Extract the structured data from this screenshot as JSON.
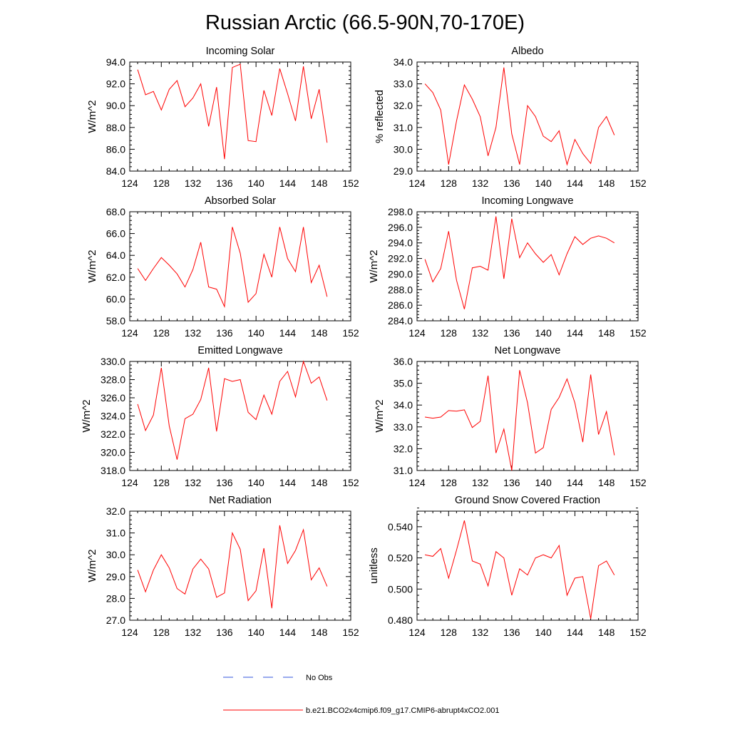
{
  "title": "Russian Arctic (66.5-90N,70-170E)",
  "legend": {
    "entries": [
      {
        "label": "No Obs",
        "color": "#3355dd",
        "style": "dashed"
      },
      {
        "label": "b.e21.BCO2x4cmip6.f09_g17.CMIP6-abrupt4xCO2.001",
        "color": "#ff0000",
        "style": "solid"
      }
    ]
  },
  "chart_data": [
    {
      "type": "line",
      "title": "Incoming Solar",
      "ylabel": "W/m^2",
      "xlim": [
        124,
        152
      ],
      "ylim": [
        84,
        94
      ],
      "xticks": [
        124,
        128,
        132,
        136,
        140,
        144,
        148,
        152
      ],
      "yticks": [
        "84.0",
        "86.0",
        "88.0",
        "90.0",
        "92.0",
        "94.0"
      ],
      "x": [
        125,
        126,
        127,
        128,
        129,
        130,
        131,
        132,
        133,
        134,
        135,
        136,
        137,
        138,
        139,
        140,
        141,
        142,
        143,
        144,
        145,
        146,
        147,
        148,
        149
      ],
      "series": [
        {
          "name": "b.e21.BCO2x4cmip6.f09_g17.CMIP6-abrupt4xCO2.001",
          "color": "#ff0000",
          "values": [
            93.3,
            91.0,
            91.3,
            89.6,
            91.5,
            92.3,
            89.9,
            90.7,
            92.0,
            88.1,
            91.7,
            85.1,
            93.5,
            93.8,
            86.8,
            86.7,
            91.4,
            89.1,
            93.4,
            91.1,
            88.6,
            93.6,
            88.8,
            91.5,
            86.6
          ]
        }
      ]
    },
    {
      "type": "line",
      "title": "Albedo",
      "ylabel": "% reflected",
      "xlim": [
        124,
        152
      ],
      "ylim": [
        29,
        34
      ],
      "xticks": [
        124,
        128,
        132,
        136,
        140,
        144,
        148,
        152
      ],
      "yticks": [
        "29.0",
        "30.0",
        "31.0",
        "32.0",
        "33.0",
        "34.0"
      ],
      "x": [
        125,
        126,
        127,
        128,
        129,
        130,
        131,
        132,
        133,
        134,
        135,
        136,
        137,
        138,
        139,
        140,
        141,
        142,
        143,
        144,
        145,
        146,
        147,
        148,
        149
      ],
      "series": [
        {
          "name": "b.e21.BCO2x4cmip6.f09_g17.CMIP6-abrupt4xCO2.001",
          "color": "#ff0000",
          "values": [
            33.0,
            32.6,
            31.8,
            29.3,
            31.3,
            32.95,
            32.3,
            31.5,
            29.7,
            31.0,
            33.75,
            30.7,
            29.3,
            32.0,
            31.5,
            30.6,
            30.35,
            30.85,
            29.3,
            30.45,
            29.8,
            29.35,
            31.0,
            31.5,
            30.65
          ]
        }
      ]
    },
    {
      "type": "line",
      "title": "Absorbed Solar",
      "ylabel": "W/m^2",
      "xlim": [
        124,
        152
      ],
      "ylim": [
        58,
        68
      ],
      "xticks": [
        124,
        128,
        132,
        136,
        140,
        144,
        148,
        152
      ],
      "yticks": [
        "58.0",
        "60.0",
        "62.0",
        "64.0",
        "66.0",
        "68.0"
      ],
      "x": [
        125,
        126,
        127,
        128,
        129,
        130,
        131,
        132,
        133,
        134,
        135,
        136,
        137,
        138,
        139,
        140,
        141,
        142,
        143,
        144,
        145,
        146,
        147,
        148,
        149
      ],
      "series": [
        {
          "name": "b.e21.BCO2x4cmip6.f09_g17.CMIP6-abrupt4xCO2.001",
          "color": "#ff0000",
          "values": [
            62.8,
            61.7,
            62.8,
            63.8,
            63.1,
            62.3,
            61.1,
            62.7,
            65.2,
            61.1,
            60.9,
            59.3,
            66.6,
            64.2,
            59.7,
            60.5,
            64.1,
            62.0,
            66.6,
            63.7,
            62.5,
            66.6,
            61.5,
            63.1,
            60.2
          ]
        }
      ]
    },
    {
      "type": "line",
      "title": "Incoming Longwave",
      "ylabel": "W/m^2",
      "xlim": [
        124,
        152
      ],
      "ylim": [
        284,
        298
      ],
      "xticks": [
        124,
        128,
        132,
        136,
        140,
        144,
        148,
        152
      ],
      "yticks": [
        "284.0",
        "286.0",
        "288.0",
        "290.0",
        "292.0",
        "294.0",
        "296.0",
        "298.0"
      ],
      "x": [
        125,
        126,
        127,
        128,
        129,
        130,
        131,
        132,
        133,
        134,
        135,
        136,
        137,
        138,
        139,
        140,
        141,
        142,
        143,
        144,
        145,
        146,
        147,
        148,
        149
      ],
      "series": [
        {
          "name": "b.e21.BCO2x4cmip6.f09_g17.CMIP6-abrupt4xCO2.001",
          "color": "#ff0000",
          "values": [
            291.9,
            289.0,
            290.7,
            295.5,
            289.2,
            285.5,
            290.8,
            291.0,
            290.5,
            297.4,
            289.4,
            297.1,
            292.1,
            294.0,
            292.6,
            291.5,
            292.5,
            289.9,
            292.6,
            294.8,
            293.8,
            294.6,
            294.9,
            294.6,
            294.0
          ]
        }
      ]
    },
    {
      "type": "line",
      "title": "Emitted Longwave",
      "ylabel": "W/m^2",
      "xlim": [
        124,
        152
      ],
      "ylim": [
        318,
        330
      ],
      "xticks": [
        124,
        128,
        132,
        136,
        140,
        144,
        148,
        152
      ],
      "yticks": [
        "318.0",
        "320.0",
        "322.0",
        "324.0",
        "326.0",
        "328.0",
        "330.0"
      ],
      "x": [
        125,
        126,
        127,
        128,
        129,
        130,
        131,
        132,
        133,
        134,
        135,
        136,
        137,
        138,
        139,
        140,
        141,
        142,
        143,
        144,
        145,
        146,
        147,
        148,
        149
      ],
      "series": [
        {
          "name": "b.e21.BCO2x4cmip6.f09_g17.CMIP6-abrupt4xCO2.001",
          "color": "#ff0000",
          "values": [
            325.3,
            322.4,
            324.1,
            329.3,
            322.9,
            319.2,
            323.7,
            324.2,
            325.8,
            329.3,
            322.3,
            328.1,
            327.8,
            328.0,
            324.4,
            323.6,
            326.3,
            324.2,
            327.8,
            328.9,
            326.1,
            330.0,
            327.6,
            328.3,
            325.7
          ]
        }
      ]
    },
    {
      "type": "line",
      "title": "Net Longwave",
      "ylabel": "W/m^2",
      "xlim": [
        124,
        152
      ],
      "ylim": [
        31,
        36
      ],
      "xticks": [
        124,
        128,
        132,
        136,
        140,
        144,
        148,
        152
      ],
      "yticks": [
        "31.0",
        "32.0",
        "33.0",
        "34.0",
        "35.0",
        "36.0"
      ],
      "x": [
        125,
        126,
        127,
        128,
        129,
        130,
        131,
        132,
        133,
        134,
        135,
        136,
        137,
        138,
        139,
        140,
        141,
        142,
        143,
        144,
        145,
        146,
        147,
        148,
        149
      ],
      "series": [
        {
          "name": "b.e21.BCO2x4cmip6.f09_g17.CMIP6-abrupt4xCO2.001",
          "color": "#ff0000",
          "values": [
            33.45,
            33.4,
            33.45,
            33.75,
            33.72,
            33.78,
            32.97,
            33.25,
            35.35,
            31.8,
            32.9,
            31.0,
            35.6,
            34.1,
            31.8,
            32.05,
            33.8,
            34.35,
            35.2,
            34.1,
            32.3,
            35.4,
            32.65,
            33.7,
            31.7
          ]
        }
      ]
    },
    {
      "type": "line",
      "title": "Net Radiation",
      "ylabel": "W/m^2",
      "xlim": [
        124,
        152
      ],
      "ylim": [
        27,
        32
      ],
      "xticks": [
        124,
        128,
        132,
        136,
        140,
        144,
        148,
        152
      ],
      "yticks": [
        "27.0",
        "28.0",
        "29.0",
        "30.0",
        "31.0",
        "32.0"
      ],
      "x": [
        125,
        126,
        127,
        128,
        129,
        130,
        131,
        132,
        133,
        134,
        135,
        136,
        137,
        138,
        139,
        140,
        141,
        142,
        143,
        144,
        145,
        146,
        147,
        148,
        149
      ],
      "series": [
        {
          "name": "b.e21.BCO2x4cmip6.f09_g17.CMIP6-abrupt4xCO2.001",
          "color": "#ff0000",
          "values": [
            29.3,
            28.3,
            29.3,
            30.0,
            29.4,
            28.45,
            28.2,
            29.35,
            29.8,
            29.35,
            28.05,
            28.25,
            31.0,
            30.25,
            27.9,
            28.35,
            30.3,
            27.55,
            31.35,
            29.6,
            30.2,
            31.15,
            28.85,
            29.4,
            28.55
          ]
        }
      ]
    },
    {
      "type": "line",
      "title": "Ground Snow Covered Fraction",
      "ylabel": "unitless",
      "xlim": [
        124,
        152
      ],
      "ylim": [
        0.48,
        0.55
      ],
      "xticks": [
        124,
        128,
        132,
        136,
        140,
        144,
        148,
        152
      ],
      "yticks": [
        "0.480",
        "0.500",
        "0.520",
        "0.540"
      ],
      "x": [
        125,
        126,
        127,
        128,
        129,
        130,
        131,
        132,
        133,
        134,
        135,
        136,
        137,
        138,
        139,
        140,
        141,
        142,
        143,
        144,
        145,
        146,
        147,
        148,
        149
      ],
      "series": [
        {
          "name": "b.e21.BCO2x4cmip6.f09_g17.CMIP6-abrupt4xCO2.001",
          "color": "#ff0000",
          "values": [
            0.522,
            0.521,
            0.526,
            0.507,
            0.525,
            0.544,
            0.518,
            0.516,
            0.502,
            0.524,
            0.52,
            0.496,
            0.513,
            0.509,
            0.52,
            0.522,
            0.52,
            0.528,
            0.496,
            0.507,
            0.508,
            0.481,
            0.515,
            0.518,
            0.509
          ]
        }
      ]
    }
  ]
}
